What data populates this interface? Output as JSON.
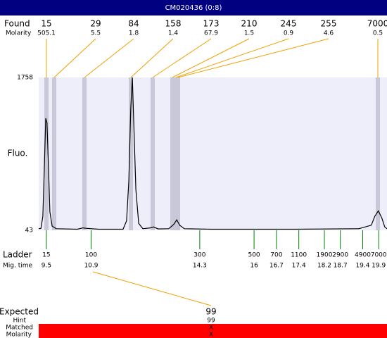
{
  "header": {
    "title": "CM020436 (0:8)"
  },
  "found": {
    "label": "Found",
    "molarity_label": "Molarity",
    "sizes": [
      15,
      29,
      84,
      158,
      173,
      210,
      245,
      255,
      7000
    ],
    "molarity": [
      505.1,
      5.5,
      1.8,
      1.4,
      67.9,
      1.5,
      0.9,
      4.6,
      0.5
    ]
  },
  "chart_data": {
    "type": "line",
    "ylabel": "Fluo.",
    "color": "#000000",
    "x": [
      9.26,
      9.33,
      9.39,
      9.44,
      9.48,
      9.52,
      9.57,
      9.61,
      9.68,
      9.81,
      10.47,
      10.65,
      10.74,
      11.13,
      11.9,
      12.01,
      12.08,
      12.14,
      12.19,
      12.23,
      12.3,
      12.39,
      12.52,
      12.76,
      12.85,
      13.0,
      13.33,
      13.49,
      13.58,
      13.67,
      13.82,
      14.66,
      17.3,
      19.28,
      19.67,
      19.78,
      19.89,
      20.0,
      20.09,
      20.16
    ],
    "values": [
      60,
      65,
      200,
      800,
      1300,
      1250,
      700,
      250,
      90,
      60,
      55,
      70,
      65,
      55,
      55,
      150,
      600,
      1400,
      1758,
      1300,
      500,
      120,
      60,
      70,
      80,
      58,
      60,
      110,
      160,
      100,
      60,
      55,
      55,
      60,
      100,
      200,
      260,
      180,
      80,
      60
    ],
    "xlim": [
      9.26,
      20.16
    ],
    "ylim": [
      43,
      1758
    ],
    "yticks": [
      43,
      1758
    ]
  },
  "ladder": {
    "label": "Ladder",
    "mig_label": "Mig. time",
    "sizes": [
      15,
      100,
      300,
      500,
      700,
      1100,
      1900,
      2900,
      4900,
      7000
    ],
    "mig_times": [
      9.5,
      10.9,
      14.3,
      16,
      16.7,
      17.4,
      18.2,
      18.7,
      19.4,
      19.9
    ]
  },
  "expected": {
    "label": "Expected",
    "value": 99,
    "hint_label": "Hint",
    "hint": 99,
    "matched_label": "Matched",
    "matched": "X",
    "molarity_label": "Molarity",
    "molarity": "X"
  }
}
